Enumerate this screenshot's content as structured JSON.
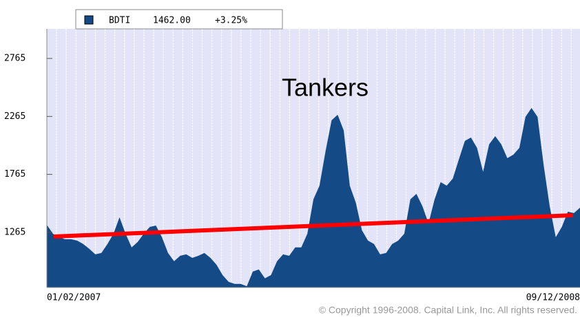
{
  "chart_data": {
    "type": "area",
    "annotation": "Tankers",
    "legend": {
      "value": {
        "value": 1462,
        "label": "1462.00"
      },
      "change": {
        "value": 3.25,
        "label": "+3.25%"
      }
    },
    "copyright": "© Copyright 1996-2008. Capital Link, Inc. All rights reserved.",
    "categories": [
      "01/02/2007",
      null,
      null,
      null,
      null,
      null,
      null,
      null,
      null,
      null,
      null,
      null,
      null,
      null,
      null,
      null,
      null,
      null,
      null,
      null,
      null,
      null,
      null,
      null,
      null,
      null,
      null,
      null,
      null,
      null,
      null,
      null,
      null,
      null,
      null,
      null,
      null,
      null,
      null,
      null,
      null,
      null,
      null,
      null,
      null,
      null,
      null,
      null,
      null,
      null,
      null,
      null,
      null,
      null,
      null,
      null,
      null,
      null,
      null,
      null,
      null,
      null,
      null,
      null,
      null,
      null,
      null,
      null,
      null,
      null,
      null,
      null,
      null,
      null,
      null,
      null,
      null,
      null,
      null,
      null,
      null,
      null,
      null,
      null,
      null,
      null,
      null,
      null,
      "09/12/2008"
    ],
    "series": [
      {
        "name": "BDTI",
        "color": "#144a86",
        "values": [
          1330,
          1253,
          1223,
          1206,
          1206,
          1194,
          1164,
          1123,
          1075,
          1087,
          1164,
          1253,
          1395,
          1253,
          1135,
          1182,
          1253,
          1312,
          1324,
          1223,
          1087,
          1016,
          1063,
          1075,
          1045,
          1063,
          1087,
          1045,
          986,
          897,
          838,
          820,
          820,
          800,
          927,
          945,
          868,
          897,
          1016,
          1075,
          1063,
          1135,
          1135,
          1253,
          1550,
          1668,
          1965,
          2232,
          2279,
          2143,
          1668,
          1520,
          1283,
          1194,
          1164,
          1075,
          1087,
          1164,
          1194,
          1253,
          1550,
          1597,
          1490,
          1342,
          1550,
          1698,
          1668,
          1728,
          1894,
          2054,
          2083,
          1994,
          1787,
          2024,
          2095,
          2024,
          1905,
          1935,
          1994,
          2261,
          2338,
          2261,
          1846,
          1490,
          1223,
          1312,
          1443,
          1431,
          1478
        ]
      }
    ],
    "trend_line": {
      "color": "#ff0000",
      "values": [
        1229,
        1413
      ]
    },
    "ylim": [
      790,
      3020
    ],
    "yticks": [
      1265,
      1765,
      2265,
      2765
    ]
  }
}
